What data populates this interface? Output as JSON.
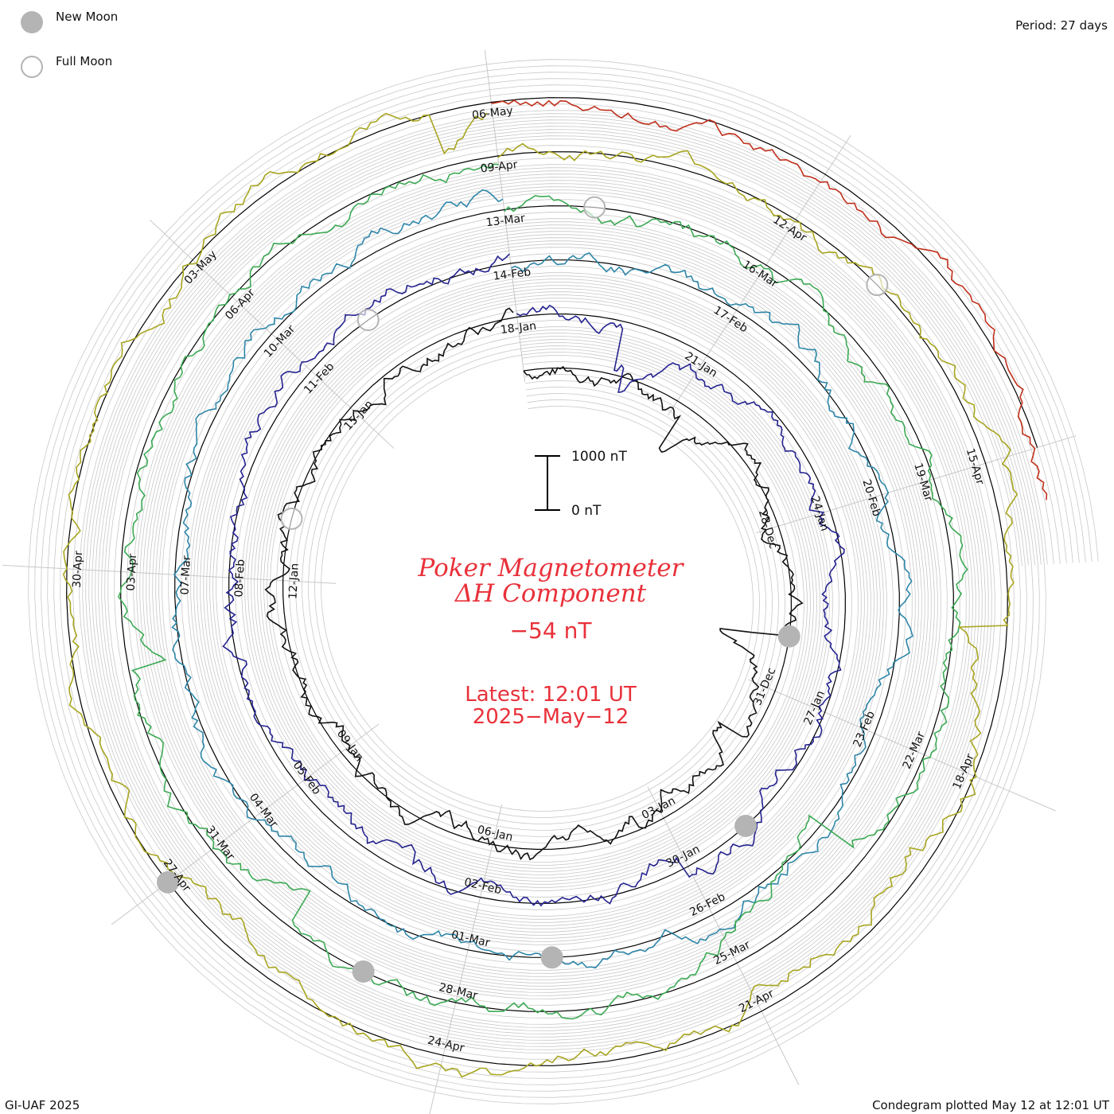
{
  "header": {
    "new_moon_label": "New Moon",
    "full_moon_label": "Full Moon",
    "period_label": "Period: 27 days"
  },
  "center": {
    "title_line1": "Poker Magnetometer",
    "title_line2": "ΔH Component",
    "current_value": "−54 nT",
    "latest_line1": "Latest: 12:01 UT",
    "latest_line2": "2025−May−12",
    "scale_top_label": "1000 nT",
    "scale_bottom_label": "0 nT"
  },
  "footer": {
    "left": "GI-UAF 2025",
    "right": "Condegram plotted May 12 at 12:01 UT"
  },
  "chart_data": {
    "type": "line",
    "period_days": 27,
    "scale_nT": 1000,
    "colors": {
      "title": "#e8313a",
      "moon": "#b4b4b4",
      "grid": "#c8c8c8"
    },
    "rings": [
      {
        "ring": 0,
        "start": "2024-12-22",
        "color": "#111111",
        "date_labels": [
          "28-Dec",
          "31-Dec",
          "03-Jan",
          "06-Jan",
          "09-Jan",
          "12-Jan",
          "15-Jan",
          "18-Jan",
          "21-Jan"
        ]
      },
      {
        "ring": 1,
        "start": "2025-01-18",
        "color": "#25238f",
        "date_labels": [
          "24-Jan",
          "27-Jan",
          "30-Jan",
          "02-Feb",
          "05-Feb",
          "08-Feb",
          "11-Feb",
          "14-Feb",
          "17-Feb"
        ]
      },
      {
        "ring": 2,
        "start": "2025-02-14",
        "color": "#2e86a8",
        "date_labels": [
          "20-Feb",
          "23-Feb",
          "26-Feb",
          "01-Mar",
          "04-Mar",
          "07-Mar",
          "10-Mar",
          "13-Mar",
          "16-Mar"
        ]
      },
      {
        "ring": 3,
        "start": "2025-03-13",
        "color": "#3daa55",
        "date_labels": [
          "19-Mar",
          "22-Mar",
          "25-Mar",
          "28-Mar",
          "31-Mar",
          "03-Apr",
          "06-Apr",
          "09-Apr",
          "12-Apr"
        ]
      },
      {
        "ring": 4,
        "start": "2025-04-09",
        "color": "#a8a520",
        "date_labels": [
          "15-Apr",
          "18-Apr",
          "21-Apr",
          "24-Apr",
          "27-Apr",
          "30-Apr",
          "03-May",
          "06-May"
        ]
      },
      {
        "ring": 5,
        "start": "2025-05-06",
        "color": "#c0301c",
        "date_labels": []
      }
    ],
    "new_moons": [
      "2024-12-30",
      "2025-01-29",
      "2025-02-28",
      "2025-03-29",
      "2025-04-27"
    ],
    "full_moons": [
      "2025-01-13",
      "2025-02-12",
      "2025-03-14",
      "2025-04-13"
    ],
    "latest": "2025-05-12 12:01 UT",
    "latest_value_nT": -54
  }
}
